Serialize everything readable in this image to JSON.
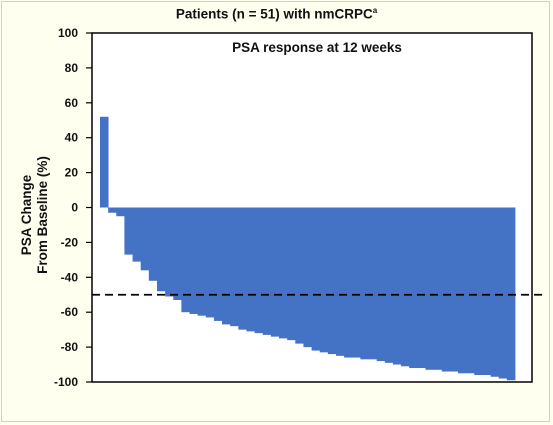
{
  "chart_data": {
    "type": "bar",
    "title": "Patients (n = 51) with nmCRPC",
    "title_superscript": "a",
    "subtitle": "PSA response at 12 weeks",
    "ylabel_line1": "PSA Change",
    "ylabel_line2": "From Baseline (%)",
    "ylim": [
      -100,
      100
    ],
    "yticks": [
      100,
      80,
      60,
      40,
      20,
      0,
      -20,
      -40,
      -60,
      -80,
      -100
    ],
    "reference_line": {
      "y": -50,
      "style": "dashed"
    },
    "bar_color": "#4472c4",
    "grid": false,
    "values": [
      52,
      -3,
      -5,
      -27,
      -31,
      -36,
      -42,
      -48,
      -51,
      -53,
      -60,
      -61,
      -62,
      -63,
      -65,
      -67,
      -68,
      -70,
      -71,
      -72,
      -73,
      -74,
      -75,
      -76,
      -78,
      -80,
      -82,
      -83,
      -84,
      -85,
      -86,
      -86,
      -87,
      -87,
      -88,
      -89,
      -90,
      -91,
      -92,
      -92,
      -93,
      -93,
      -94,
      -94,
      -95,
      -95,
      -96,
      -96,
      -97,
      -98,
      -99
    ]
  }
}
